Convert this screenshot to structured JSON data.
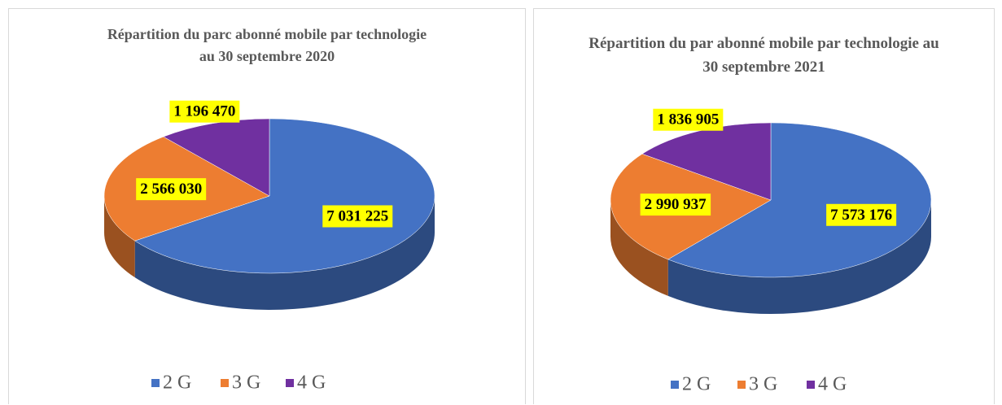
{
  "chart_data": [
    {
      "type": "pie3d",
      "title": "Répartition du parc abonné mobile par technologie au 30 septembre 2020",
      "categories": [
        "2 G",
        "3 G",
        "4 G"
      ],
      "values": [
        7031225,
        2566030,
        1196470
      ],
      "value_labels": [
        "7 031 225",
        "2 566 030",
        "1 196 470"
      ],
      "colors": [
        "#4472c4",
        "#ed7d31",
        "#7030a0"
      ],
      "legend": "bottom"
    },
    {
      "type": "pie3d",
      "title": "Répartition du par abonné mobile par technologie au 30 septembre 2021",
      "categories": [
        "2 G",
        "3 G",
        "4 G"
      ],
      "values": [
        7573176,
        2990937,
        1836905
      ],
      "value_labels": [
        "7 573 176",
        "2 990 937",
        "1 836 905"
      ],
      "colors": [
        "#4472c4",
        "#ed7d31",
        "#7030a0"
      ],
      "legend": "bottom"
    }
  ]
}
